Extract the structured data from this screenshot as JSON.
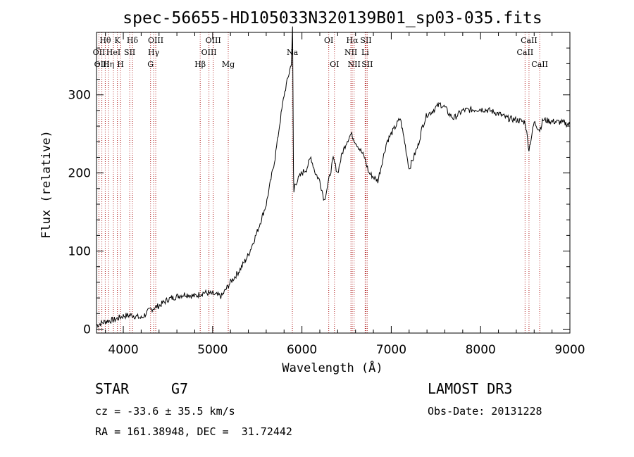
{
  "chart_data": {
    "type": "line",
    "title": "spec-56655-HD105033N320139B01_sp03-035.fits",
    "xlabel": "Wavelength (Å)",
    "ylabel": "Flux (relative)",
    "xlim": [
      3700,
      9000
    ],
    "ylim": [
      -5,
      380
    ],
    "x_ticks": [
      4000,
      5000,
      6000,
      7000,
      8000,
      9000
    ],
    "y_ticks": [
      0,
      100,
      200,
      300
    ],
    "grid": false,
    "series": [
      {
        "name": "spectrum",
        "x": [
          3700,
          3800,
          3900,
          4000,
          4100,
          4200,
          4300,
          4400,
          4500,
          4600,
          4700,
          4800,
          4900,
          5000,
          5100,
          5200,
          5300,
          5400,
          5500,
          5600,
          5700,
          5750,
          5800,
          5850,
          5880,
          5895,
          5905,
          5910,
          5915,
          5920,
          6000,
          6050,
          6100,
          6150,
          6200,
          6250,
          6300,
          6350,
          6400,
          6450,
          6500,
          6550,
          6600,
          6650,
          6700,
          6750,
          6800,
          6850,
          6900,
          6950,
          7000,
          7050,
          7100,
          7150,
          7200,
          7250,
          7300,
          7350,
          7400,
          7450,
          7500,
          7550,
          7600,
          7650,
          7700,
          7750,
          7800,
          7900,
          8000,
          8100,
          8200,
          8300,
          8400,
          8500,
          8542,
          8600,
          8662,
          8700,
          8800,
          8900,
          9000
        ],
        "y": [
          5,
          10,
          12,
          17,
          18,
          14,
          25,
          30,
          38,
          42,
          45,
          42,
          47,
          45,
          42,
          60,
          75,
          95,
          125,
          160,
          220,
          262,
          300,
          325,
          340,
          385,
          200,
          175,
          180,
          185,
          200,
          205,
          220,
          200,
          190,
          165,
          190,
          218,
          200,
          225,
          240,
          250,
          240,
          230,
          220,
          200,
          195,
          190,
          215,
          240,
          250,
          260,
          270,
          240,
          205,
          220,
          235,
          260,
          275,
          278,
          284,
          288,
          284,
          275,
          270,
          275,
          280,
          281,
          282,
          280,
          276,
          270,
          268,
          265,
          230,
          265,
          255,
          268,
          266,
          265,
          262
        ]
      }
    ],
    "annotations": [
      {
        "label": "Hθ",
        "wavelength": 3798,
        "row": 1
      },
      {
        "label": "OII",
        "wavelength": 3727,
        "row": 2
      },
      {
        "label": "OIII",
        "wavelength": 3760,
        "row": 3
      },
      {
        "label": "K",
        "wavelength": 3934,
        "row": 1
      },
      {
        "label": "HeI",
        "wavelength": 3889,
        "row": 2
      },
      {
        "label": "Hη",
        "wavelength": 3835,
        "row": 3
      },
      {
        "label": "Hδ",
        "wavelength": 4102,
        "row": 1
      },
      {
        "label": "SII",
        "wavelength": 4072,
        "row": 2
      },
      {
        "label": "H",
        "wavelength": 3969,
        "row": 3
      },
      {
        "label": "OIII",
        "wavelength": 4363,
        "row": 1
      },
      {
        "label": "Hγ",
        "wavelength": 4340,
        "row": 2
      },
      {
        "label": "G",
        "wavelength": 4305,
        "row": 3
      },
      {
        "label": "OIII",
        "wavelength": 5007,
        "row": 1
      },
      {
        "label": "OIII",
        "wavelength": 4959,
        "row": 2
      },
      {
        "label": "Hβ",
        "wavelength": 4861,
        "row": 3
      },
      {
        "label": "Mg",
        "wavelength": 5175,
        "row": 3
      },
      {
        "label": "Na",
        "wavelength": 5893,
        "row": 2
      },
      {
        "label": "OI",
        "wavelength": 6300,
        "row": 1
      },
      {
        "label": "OI",
        "wavelength": 6364,
        "row": 3
      },
      {
        "label": "Hα",
        "wavelength": 6563,
        "row": 1
      },
      {
        "label": "SII",
        "wavelength": 6717,
        "row": 1
      },
      {
        "label": "NII",
        "wavelength": 6548,
        "row": 2
      },
      {
        "label": "Li",
        "wavelength": 6708,
        "row": 2
      },
      {
        "label": "NII",
        "wavelength": 6584,
        "row": 3
      },
      {
        "label": "SII",
        "wavelength": 6731,
        "row": 3
      },
      {
        "label": "CaII",
        "wavelength": 8542,
        "row": 1
      },
      {
        "label": "CaII",
        "wavelength": 8498,
        "row": 2
      },
      {
        "label": "CaII",
        "wavelength": 8662,
        "row": 3
      }
    ],
    "line_color": "#000000",
    "marker_color": "#b22222"
  },
  "info": {
    "class_label": "STAR",
    "subclass": "G7",
    "survey": "LAMOST DR3",
    "cz_text": "cz = -33.6 ± 35.5 km/s",
    "obs_date": "Obs-Date: 20131228",
    "coords": "RA = 161.38948, DEC =  31.72442"
  }
}
